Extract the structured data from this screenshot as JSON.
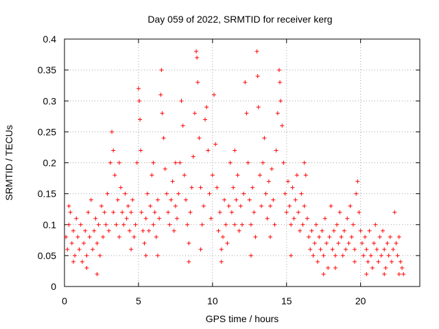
{
  "chart_data": {
    "type": "scatter",
    "title": "Day 059 of 2022, SRMTID for receiver kerg",
    "xlabel": "GPS time / hours",
    "ylabel": "SRMTID / TECUs",
    "xlim": [
      0,
      24
    ],
    "ylim": [
      0,
      0.4
    ],
    "xticks": [
      0,
      5,
      10,
      15,
      20
    ],
    "xtick_labels": [
      "0",
      "5",
      "10",
      "15",
      "20"
    ],
    "yticks": [
      0,
      0.05,
      0.1,
      0.15,
      0.2,
      0.25,
      0.3,
      0.35,
      0.4
    ],
    "ytick_labels": [
      "0",
      "0.05",
      "0.1",
      "0.15",
      "0.2",
      "0.25",
      "0.3",
      "0.35",
      "0.4"
    ],
    "grid": true,
    "marker": "+",
    "color": "#ff0000",
    "series": [
      {
        "name": "SRMTID",
        "points": [
          [
            0.1,
            0.08
          ],
          [
            0.2,
            0.06
          ],
          [
            0.3,
            0.1
          ],
          [
            0.4,
            0.12
          ],
          [
            0.5,
            0.07
          ],
          [
            0.6,
            0.09
          ],
          [
            0.7,
            0.05
          ],
          [
            0.8,
            0.11
          ],
          [
            0.9,
            0.08
          ],
          [
            1.0,
            0.06
          ],
          [
            1.1,
            0.1
          ],
          [
            1.2,
            0.04
          ],
          [
            1.3,
            0.07
          ],
          [
            1.4,
            0.09
          ],
          [
            1.5,
            0.05
          ],
          [
            1.6,
            0.12
          ],
          [
            1.7,
            0.08
          ],
          [
            1.8,
            0.14
          ],
          [
            1.9,
            0.06
          ],
          [
            2.0,
            0.09
          ],
          [
            2.1,
            0.11
          ],
          [
            2.2,
            0.07
          ],
          [
            2.3,
            0.1
          ],
          [
            2.4,
            0.05
          ],
          [
            2.5,
            0.13
          ],
          [
            2.6,
            0.08
          ],
          [
            2.7,
            0.12
          ],
          [
            2.8,
            0.1
          ],
          [
            2.9,
            0.15
          ],
          [
            3.0,
            0.09
          ],
          [
            3.1,
            0.2
          ],
          [
            3.2,
            0.25
          ],
          [
            3.3,
            0.12
          ],
          [
            3.4,
            0.18
          ],
          [
            3.5,
            0.1
          ],
          [
            3.6,
            0.14
          ],
          [
            3.7,
            0.08
          ],
          [
            3.8,
            0.16
          ],
          [
            3.9,
            0.12
          ],
          [
            4.0,
            0.1
          ],
          [
            4.1,
            0.15
          ],
          [
            4.2,
            0.11
          ],
          [
            4.3,
            0.13
          ],
          [
            4.4,
            0.09
          ],
          [
            4.5,
            0.12
          ],
          [
            4.6,
            0.14
          ],
          [
            4.7,
            0.08
          ],
          [
            4.8,
            0.1
          ],
          [
            4.9,
            0.2
          ],
          [
            5.0,
            0.32
          ],
          [
            5.05,
            0.3
          ],
          [
            5.1,
            0.27
          ],
          [
            5.15,
            0.22
          ],
          [
            5.2,
            0.12
          ],
          [
            5.3,
            0.09
          ],
          [
            5.4,
            0.07
          ],
          [
            5.5,
            0.11
          ],
          [
            5.6,
            0.15
          ],
          [
            5.7,
            0.09
          ],
          [
            5.8,
            0.13
          ],
          [
            5.9,
            0.18
          ],
          [
            6.0,
            0.1
          ],
          [
            6.1,
            0.12
          ],
          [
            6.2,
            0.08
          ],
          [
            6.3,
            0.14
          ],
          [
            6.4,
            0.11
          ],
          [
            6.5,
            0.31
          ],
          [
            6.55,
            0.35
          ],
          [
            6.6,
            0.28
          ],
          [
            6.7,
            0.24
          ],
          [
            6.8,
            0.19
          ],
          [
            6.9,
            0.15
          ],
          [
            7.0,
            0.12
          ],
          [
            7.1,
            0.1
          ],
          [
            7.2,
            0.14
          ],
          [
            7.3,
            0.17
          ],
          [
            7.4,
            0.09
          ],
          [
            7.5,
            0.13
          ],
          [
            7.6,
            0.11
          ],
          [
            7.7,
            0.15
          ],
          [
            7.8,
            0.2
          ],
          [
            7.9,
            0.3
          ],
          [
            8.0,
            0.26
          ],
          [
            8.1,
            0.18
          ],
          [
            8.2,
            0.14
          ],
          [
            8.3,
            0.1
          ],
          [
            8.4,
            0.07
          ],
          [
            8.5,
            0.12
          ],
          [
            8.6,
            0.16
          ],
          [
            8.7,
            0.21
          ],
          [
            8.8,
            0.28
          ],
          [
            8.9,
            0.38
          ],
          [
            8.95,
            0.37
          ],
          [
            9.0,
            0.33
          ],
          [
            9.1,
            0.24
          ],
          [
            9.2,
            0.16
          ],
          [
            9.3,
            0.1
          ],
          [
            9.4,
            0.13
          ],
          [
            9.5,
            0.27
          ],
          [
            9.6,
            0.29
          ],
          [
            9.7,
            0.22
          ],
          [
            9.8,
            0.15
          ],
          [
            9.9,
            0.11
          ],
          [
            10.0,
            0.18
          ],
          [
            10.1,
            0.31
          ],
          [
            10.2,
            0.23
          ],
          [
            10.3,
            0.16
          ],
          [
            10.4,
            0.09
          ],
          [
            10.5,
            0.12
          ],
          [
            10.6,
            0.06
          ],
          [
            10.7,
            0.08
          ],
          [
            10.8,
            0.14
          ],
          [
            10.9,
            0.1
          ],
          [
            11.0,
            0.07
          ],
          [
            11.1,
            0.13
          ],
          [
            11.2,
            0.2
          ],
          [
            11.3,
            0.12
          ],
          [
            11.4,
            0.16
          ],
          [
            11.5,
            0.1
          ],
          [
            11.6,
            0.14
          ],
          [
            11.7,
            0.18
          ],
          [
            11.8,
            0.09
          ],
          [
            11.9,
            0.13
          ],
          [
            12.0,
            0.1
          ],
          [
            12.1,
            0.15
          ],
          [
            12.2,
            0.33
          ],
          [
            12.3,
            0.28
          ],
          [
            12.4,
            0.2
          ],
          [
            12.5,
            0.14
          ],
          [
            12.6,
            0.1
          ],
          [
            12.7,
            0.16
          ],
          [
            12.8,
            0.12
          ],
          [
            12.9,
            0.08
          ],
          [
            13.0,
            0.38
          ],
          [
            13.05,
            0.34
          ],
          [
            13.1,
            0.29
          ],
          [
            13.2,
            0.18
          ],
          [
            13.3,
            0.13
          ],
          [
            13.4,
            0.2
          ],
          [
            13.5,
            0.24
          ],
          [
            13.6,
            0.15
          ],
          [
            13.7,
            0.11
          ],
          [
            13.8,
            0.17
          ],
          [
            13.9,
            0.13
          ],
          [
            14.0,
            0.19
          ],
          [
            14.1,
            0.14
          ],
          [
            14.2,
            0.1
          ],
          [
            14.3,
            0.22
          ],
          [
            14.4,
            0.28
          ],
          [
            14.5,
            0.35
          ],
          [
            14.55,
            0.33
          ],
          [
            14.6,
            0.3
          ],
          [
            14.7,
            0.26
          ],
          [
            14.8,
            0.2
          ],
          [
            14.9,
            0.15
          ],
          [
            15.0,
            0.12
          ],
          [
            15.1,
            0.17
          ],
          [
            15.2,
            0.13
          ],
          [
            15.3,
            0.1
          ],
          [
            15.4,
            0.16
          ],
          [
            15.5,
            0.11
          ],
          [
            15.6,
            0.14
          ],
          [
            15.7,
            0.18
          ],
          [
            15.8,
            0.12
          ],
          [
            15.9,
            0.09
          ],
          [
            16.0,
            0.15
          ],
          [
            16.1,
            0.1
          ],
          [
            16.2,
            0.13
          ],
          [
            16.3,
            0.18
          ],
          [
            16.4,
            0.11
          ],
          [
            16.5,
            0.08
          ],
          [
            16.6,
            0.06
          ],
          [
            16.7,
            0.09
          ],
          [
            16.8,
            0.05
          ],
          [
            16.9,
            0.07
          ],
          [
            17.0,
            0.1
          ],
          [
            17.1,
            0.04
          ],
          [
            17.2,
            0.08
          ],
          [
            17.3,
            0.06
          ],
          [
            17.4,
            0.09
          ],
          [
            17.5,
            0.05
          ],
          [
            17.6,
            0.11
          ],
          [
            17.7,
            0.07
          ],
          [
            17.8,
            0.03
          ],
          [
            17.9,
            0.08
          ],
          [
            18.0,
            0.13
          ],
          [
            18.1,
            0.06
          ],
          [
            18.2,
            0.09
          ],
          [
            18.3,
            0.05
          ],
          [
            18.4,
            0.1
          ],
          [
            18.5,
            0.07
          ],
          [
            18.6,
            0.12
          ],
          [
            18.7,
            0.08
          ],
          [
            18.8,
            0.05
          ],
          [
            18.9,
            0.09
          ],
          [
            19.0,
            0.06
          ],
          [
            19.1,
            0.11
          ],
          [
            19.2,
            0.07
          ],
          [
            19.3,
            0.13
          ],
          [
            19.4,
            0.08
          ],
          [
            19.5,
            0.1
          ],
          [
            19.6,
            0.06
          ],
          [
            19.7,
            0.15
          ],
          [
            19.8,
            0.17
          ],
          [
            19.9,
            0.12
          ],
          [
            20.0,
            0.09
          ],
          [
            20.1,
            0.07
          ],
          [
            20.2,
            0.05
          ],
          [
            20.3,
            0.08
          ],
          [
            20.4,
            0.06
          ],
          [
            20.5,
            0.04
          ],
          [
            20.6,
            0.09
          ],
          [
            20.7,
            0.05
          ],
          [
            20.8,
            0.03
          ],
          [
            20.9,
            0.07
          ],
          [
            21.0,
            0.1
          ],
          [
            21.1,
            0.06
          ],
          [
            21.2,
            0.04
          ],
          [
            21.3,
            0.08
          ],
          [
            21.4,
            0.05
          ],
          [
            21.5,
            0.09
          ],
          [
            21.6,
            0.06
          ],
          [
            21.7,
            0.03
          ],
          [
            21.8,
            0.07
          ],
          [
            21.9,
            0.05
          ],
          [
            22.0,
            0.08
          ],
          [
            22.1,
            0.04
          ],
          [
            22.2,
            0.06
          ],
          [
            22.3,
            0.12
          ],
          [
            22.4,
            0.07
          ],
          [
            22.5,
            0.05
          ],
          [
            22.6,
            0.08
          ],
          [
            22.7,
            0.04
          ],
          [
            22.8,
            0.03
          ],
          [
            22.9,
            0.02
          ],
          [
            0.3,
            0.13
          ],
          [
            0.6,
            0.04
          ],
          [
            1.5,
            0.03
          ],
          [
            2.2,
            0.02
          ],
          [
            3.3,
            0.22
          ],
          [
            3.7,
            0.2
          ],
          [
            4.5,
            0.06
          ],
          [
            5.5,
            0.05
          ],
          [
            6.0,
            0.2
          ],
          [
            6.3,
            0.05
          ],
          [
            7.5,
            0.2
          ],
          [
            8.4,
            0.04
          ],
          [
            9.2,
            0.06
          ],
          [
            10.6,
            0.04
          ],
          [
            11.5,
            0.22
          ],
          [
            12.6,
            0.05
          ],
          [
            13.9,
            0.08
          ],
          [
            15.3,
            0.05
          ],
          [
            16.2,
            0.2
          ],
          [
            17.5,
            0.02
          ],
          [
            18.3,
            0.03
          ],
          [
            19.6,
            0.04
          ],
          [
            20.4,
            0.02
          ],
          [
            21.6,
            0.02
          ],
          [
            22.6,
            0.02
          ]
        ]
      }
    ]
  }
}
